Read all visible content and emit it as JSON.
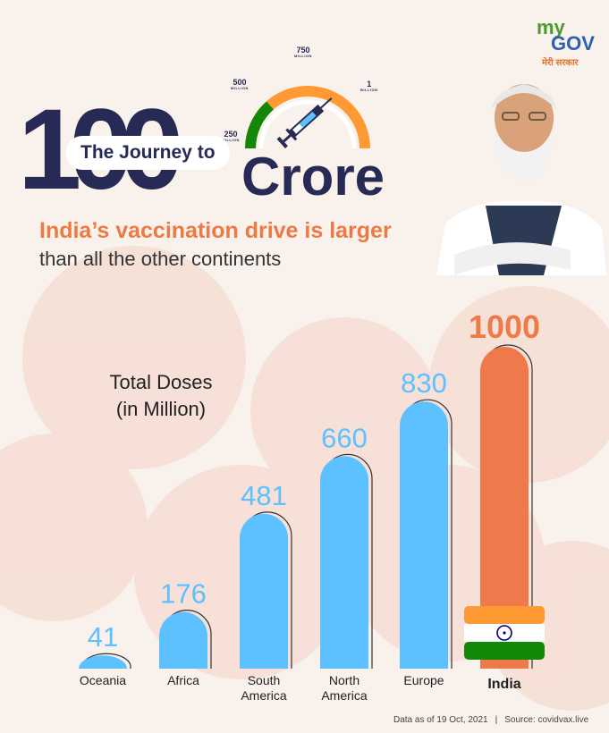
{
  "brand": {
    "logo_my": "my",
    "logo_gov": "GOV",
    "tagline": "मेरी सरकार"
  },
  "header": {
    "hundred": "100",
    "journey": "The Journey to",
    "crore": "Crore",
    "headline": "India’s vaccination drive is larger",
    "subline": "than all the other continents"
  },
  "gauge": {
    "labels": [
      {
        "value": "250",
        "unit": "MILLION"
      },
      {
        "value": "500",
        "unit": "MILLION"
      },
      {
        "value": "750",
        "unit": "MILLION"
      },
      {
        "value": "1",
        "unit": "BILLION"
      }
    ],
    "colors": [
      "#138808",
      "#ffffff",
      "#ff9933"
    ]
  },
  "chart_data": {
    "type": "bar",
    "ylabel": "Total Doses",
    "ylabel_unit": "(in Million)",
    "categories": [
      "Oceania",
      "Africa",
      "South America",
      "North America",
      "Europe",
      "India"
    ],
    "category_lines": [
      [
        "Oceania"
      ],
      [
        "Africa"
      ],
      [
        "South",
        "America"
      ],
      [
        "North",
        "America"
      ],
      [
        "Europe"
      ],
      [
        "India"
      ]
    ],
    "values": [
      41,
      176,
      481,
      660,
      830,
      1000
    ],
    "ylim": [
      0,
      1000
    ],
    "grid": false,
    "bar_color": "#5ec1ff",
    "highlight_category": "India",
    "highlight_color": "#ee7a4b"
  },
  "footer": {
    "date_note": "Data as of 19 Oct, 2021",
    "source": "Source: covidvax.live"
  }
}
